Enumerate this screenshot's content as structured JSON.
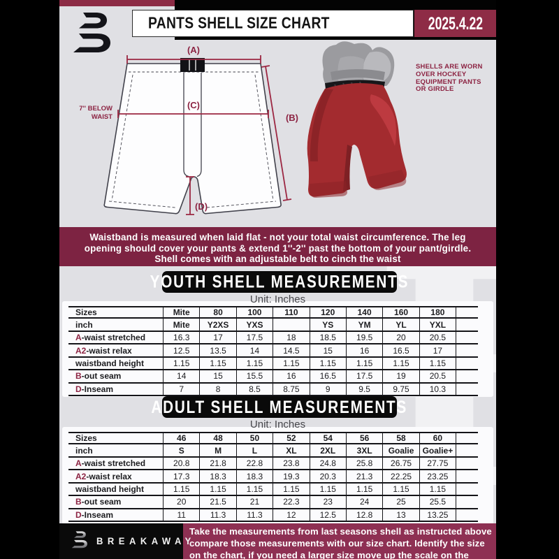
{
  "colors": {
    "page_black": "#000000",
    "content_gray": "#e0e0e4",
    "maroon_notice": "#7d2342",
    "maroon_date_box": "#8e2c46",
    "maroon_footer": "#8e3053",
    "maroon_accent": "#8c2342",
    "banner_black": "#0a0a0a",
    "pants_red": "#a32b2f"
  },
  "header": {
    "title": "PANTS SHELL SIZE CHART",
    "date": "2025.4.22"
  },
  "diagram": {
    "label_a": "(A)",
    "label_b": "(B)",
    "label_c": "(C)",
    "label_d": "(D)",
    "below_waist_lines": [
      "7'' BELOW",
      "WAIST"
    ],
    "shell_note_lines": [
      "SHELLS ARE WORN",
      "OVER HOCKEY",
      "EQUIPMENT PANTS",
      "OR GIRDLE"
    ]
  },
  "notice": {
    "lines": [
      "Waistband is measured when laid flat - not your total waist circumference. The leg",
      "opening should cover your pants & extend 1''-2'' past the bottom of your pant/girdle.",
      "Shell comes with an adjustable belt to cinch the waist"
    ]
  },
  "youth": {
    "banner": "YOUTH SHELL MEASUREMENTS",
    "unit": "Unit: Inches",
    "table": {
      "rows": [
        {
          "prefix": "",
          "label": "Sizes",
          "header": true,
          "values": [
            "Mite",
            "80",
            "100",
            "110",
            "120",
            "140",
            "160",
            "180"
          ]
        },
        {
          "prefix": "",
          "label": "inch",
          "header": true,
          "values": [
            "Mite",
            "Y2XS",
            "YXS",
            "",
            "YS",
            "YM",
            "YL",
            "YXL"
          ]
        },
        {
          "prefix": "A",
          "label": "-waist stretched",
          "header": false,
          "values": [
            "16.3",
            "17",
            "17.5",
            "18",
            "18.5",
            "19.5",
            "20",
            "20.5"
          ]
        },
        {
          "prefix": "A2",
          "label": "-waist relax",
          "header": false,
          "values": [
            "12.5",
            "13.5",
            "14",
            "14.5",
            "15",
            "16",
            "16.5",
            "17"
          ]
        },
        {
          "prefix": "",
          "label": "waistband height",
          "header": false,
          "values": [
            "1.15",
            "1.15",
            "1.15",
            "1.15",
            "1.15",
            "1.15",
            "1.15",
            "1.15"
          ]
        },
        {
          "prefix": "B",
          "label": "-out seam",
          "header": false,
          "values": [
            "14",
            "15",
            "15.5",
            "16",
            "16.5",
            "17.5",
            "19",
            "20.5"
          ]
        },
        {
          "prefix": "D",
          "label": "-Inseam",
          "header": false,
          "values": [
            "7",
            "8",
            "8.5",
            "8.75",
            "9",
            "9.5",
            "9.75",
            "10.3"
          ]
        }
      ]
    }
  },
  "adult": {
    "banner": "ADULT SHELL MEASUREMENTS",
    "unit": "Unit: Inches",
    "table": {
      "rows": [
        {
          "prefix": "",
          "label": "Sizes",
          "header": true,
          "values": [
            "46",
            "48",
            "50",
            "52",
            "54",
            "56",
            "58",
            "60"
          ]
        },
        {
          "prefix": "",
          "label": "inch",
          "header": true,
          "values": [
            "S",
            "M",
            "L",
            "XL",
            "2XL",
            "3XL",
            "Goalie",
            "Goalie+"
          ]
        },
        {
          "prefix": "A",
          "label": "-waist stretched",
          "header": false,
          "values": [
            "20.8",
            "21.8",
            "22.8",
            "23.8",
            "24.8",
            "25.8",
            "26.75",
            "27.75"
          ]
        },
        {
          "prefix": "A2",
          "label": "-waist relax",
          "header": false,
          "values": [
            "17.3",
            "18.3",
            "18.3",
            "19.3",
            "20.3",
            "21.3",
            "22.25",
            "23.25"
          ]
        },
        {
          "prefix": "",
          "label": "waistband height",
          "header": false,
          "values": [
            "1.15",
            "1.15",
            "1.15",
            "1.15",
            "1.15",
            "1.15",
            "1.15",
            "1.15"
          ]
        },
        {
          "prefix": "B",
          "label": "-out seam",
          "header": false,
          "values": [
            "20",
            "21.5",
            "21",
            "22.3",
            "23",
            "24",
            "25",
            "25.5"
          ]
        },
        {
          "prefix": "D",
          "label": "-Inseam",
          "header": false,
          "values": [
            "11",
            "11.3",
            "11.3",
            "12",
            "12.5",
            "12.8",
            "13",
            "13.25"
          ]
        }
      ]
    }
  },
  "footer": {
    "brand": "BREAKAWAY",
    "lines": [
      "Take the measurements from last seasons shell as instructed above",
      "compare those measurements  with our size chart. Identify the size",
      "on the chart, if you need a larger size move up the scale on the chart"
    ]
  }
}
